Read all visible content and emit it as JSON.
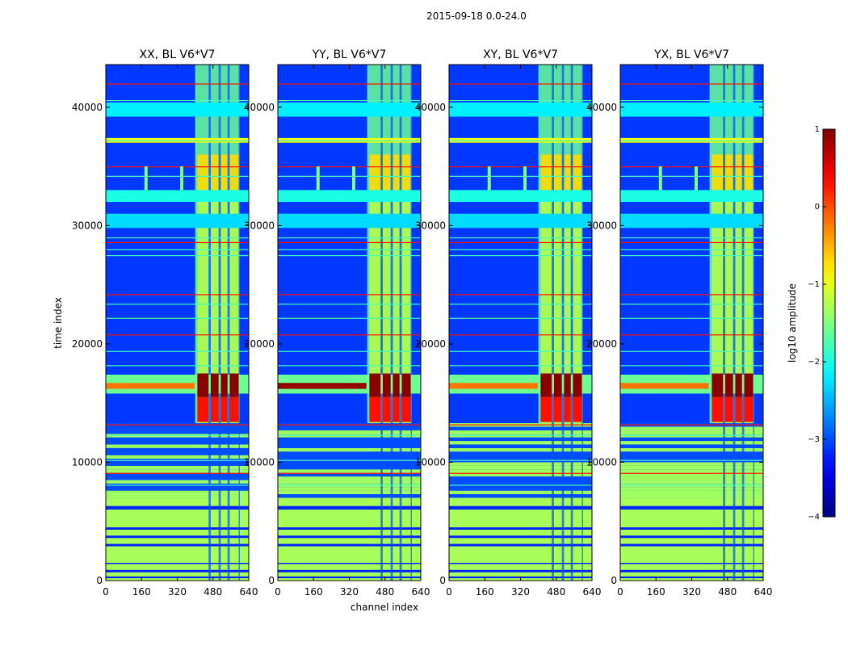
{
  "suptitle": "2015-09-18 0.0-24.0",
  "chart_data": {
    "type": "heatmap",
    "title": "2015-09-18 0.0-24.0",
    "xlabel": "channel index",
    "ylabel": "time index",
    "xlim": [
      0,
      640
    ],
    "ylim": [
      0,
      43600
    ],
    "xticks": [
      0,
      160,
      320,
      480,
      640
    ],
    "yticks": [
      0,
      10000,
      20000,
      30000,
      40000
    ],
    "colorbar": {
      "label": "log10 amplitude",
      "range": [
        -4,
        1
      ],
      "ticks": [
        1,
        0,
        -1,
        -2,
        -3,
        -4
      ],
      "tick_labels": [
        "1",
        "0",
        "−1",
        "−2",
        "−3",
        "−4"
      ],
      "colormap": "jet"
    },
    "panels": [
      {
        "title": "XX, BL V6*V7",
        "pol": "XX"
      },
      {
        "title": "YY, BL V6*V7",
        "pol": "YY"
      },
      {
        "title": "XY, BL V6*V7",
        "pol": "XY"
      },
      {
        "title": "YX, BL V6*V7",
        "pol": "YX"
      }
    ],
    "features": {
      "bright_channel_band": [
        400,
        600
      ],
      "strong_burst_time": [
        15500,
        17500
      ],
      "flagged_low_block": [
        0,
        7000
      ],
      "striped_block": [
        7000,
        13000
      ]
    }
  }
}
